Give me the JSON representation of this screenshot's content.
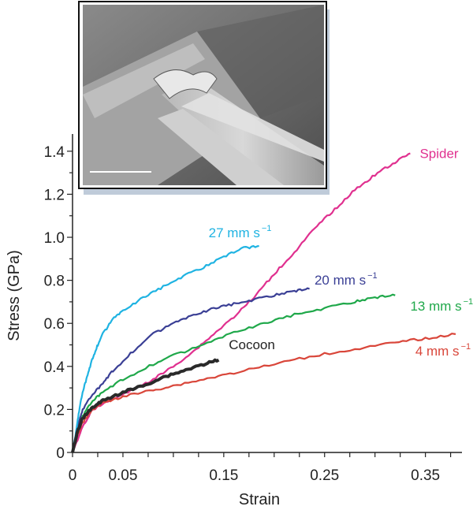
{
  "chart_data": {
    "type": "line",
    "title": "",
    "xlabel": "Strain",
    "ylabel": "Stress (GPa)",
    "xlim": [
      0,
      0.38
    ],
    "ylim": [
      0,
      1.48
    ],
    "x_ticks": [
      0,
      0.05,
      0.15,
      0.25,
      0.35
    ],
    "x_tick_labels": [
      "0",
      "0.05",
      "0.15",
      "0.25",
      "0.35"
    ],
    "y_ticks": [
      0,
      0.2,
      0.4,
      0.6,
      0.8,
      1.0,
      1.2,
      1.4
    ],
    "y_tick_labels": [
      "0",
      "0.2",
      "0.4",
      "0.6",
      "0.8",
      "1.0",
      "1.2",
      "1.4"
    ],
    "grid": false,
    "inset": {
      "description_visible": false,
      "has_scale_bar": true
    },
    "series": [
      {
        "name": "27 mm s",
        "label_sup": "−1",
        "color": "#1fb3e2",
        "points": [
          [
            0,
            0
          ],
          [
            0.003,
            0.08
          ],
          [
            0.006,
            0.18
          ],
          [
            0.01,
            0.28
          ],
          [
            0.015,
            0.36
          ],
          [
            0.02,
            0.44
          ],
          [
            0.025,
            0.5
          ],
          [
            0.03,
            0.55
          ],
          [
            0.04,
            0.62
          ],
          [
            0.05,
            0.66
          ],
          [
            0.07,
            0.72
          ],
          [
            0.09,
            0.77
          ],
          [
            0.11,
            0.82
          ],
          [
            0.13,
            0.86
          ],
          [
            0.15,
            0.91
          ],
          [
            0.17,
            0.95
          ],
          [
            0.185,
            0.96
          ]
        ]
      },
      {
        "name": "20 mm s",
        "label_sup": "−1",
        "color": "#3a3f95",
        "points": [
          [
            0,
            0
          ],
          [
            0.005,
            0.12
          ],
          [
            0.01,
            0.2
          ],
          [
            0.02,
            0.27
          ],
          [
            0.03,
            0.32
          ],
          [
            0.04,
            0.38
          ],
          [
            0.06,
            0.47
          ],
          [
            0.08,
            0.55
          ],
          [
            0.1,
            0.6
          ],
          [
            0.12,
            0.64
          ],
          [
            0.14,
            0.67
          ],
          [
            0.16,
            0.69
          ],
          [
            0.18,
            0.71
          ],
          [
            0.2,
            0.73
          ],
          [
            0.22,
            0.75
          ],
          [
            0.235,
            0.76
          ]
        ]
      },
      {
        "name": "13 mm s",
        "label_sup": "−1",
        "color": "#1fa84a",
        "points": [
          [
            0,
            0
          ],
          [
            0.005,
            0.1
          ],
          [
            0.01,
            0.17
          ],
          [
            0.02,
            0.24
          ],
          [
            0.03,
            0.28
          ],
          [
            0.05,
            0.34
          ],
          [
            0.08,
            0.41
          ],
          [
            0.1,
            0.45
          ],
          [
            0.13,
            0.5
          ],
          [
            0.16,
            0.56
          ],
          [
            0.19,
            0.6
          ],
          [
            0.22,
            0.64
          ],
          [
            0.25,
            0.67
          ],
          [
            0.28,
            0.7
          ],
          [
            0.3,
            0.72
          ],
          [
            0.32,
            0.73
          ]
        ]
      },
      {
        "name": "4 mm s",
        "label_sup": "−1",
        "color": "#d9463a",
        "points": [
          [
            0,
            0
          ],
          [
            0.005,
            0.08
          ],
          [
            0.01,
            0.14
          ],
          [
            0.02,
            0.2
          ],
          [
            0.03,
            0.23
          ],
          [
            0.05,
            0.26
          ],
          [
            0.08,
            0.29
          ],
          [
            0.1,
            0.31
          ],
          [
            0.13,
            0.34
          ],
          [
            0.16,
            0.37
          ],
          [
            0.2,
            0.41
          ],
          [
            0.24,
            0.45
          ],
          [
            0.28,
            0.48
          ],
          [
            0.32,
            0.51
          ],
          [
            0.35,
            0.53
          ],
          [
            0.38,
            0.55
          ]
        ]
      },
      {
        "name": "Cocoon",
        "label_sup": "",
        "color": "#2a2a2a",
        "points": [
          [
            0,
            0
          ],
          [
            0.005,
            0.1
          ],
          [
            0.01,
            0.16
          ],
          [
            0.02,
            0.21
          ],
          [
            0.03,
            0.24
          ],
          [
            0.05,
            0.28
          ],
          [
            0.07,
            0.31
          ],
          [
            0.09,
            0.35
          ],
          [
            0.11,
            0.38
          ],
          [
            0.13,
            0.41
          ],
          [
            0.145,
            0.43
          ]
        ]
      },
      {
        "name": "Spider",
        "label_sup": "",
        "color": "#e0308f",
        "points": [
          [
            0,
            0
          ],
          [
            0.01,
            0.12
          ],
          [
            0.02,
            0.2
          ],
          [
            0.04,
            0.25
          ],
          [
            0.06,
            0.29
          ],
          [
            0.08,
            0.34
          ],
          [
            0.1,
            0.4
          ],
          [
            0.12,
            0.47
          ],
          [
            0.14,
            0.55
          ],
          [
            0.16,
            0.63
          ],
          [
            0.18,
            0.72
          ],
          [
            0.2,
            0.83
          ],
          [
            0.22,
            0.93
          ],
          [
            0.24,
            1.04
          ],
          [
            0.26,
            1.13
          ],
          [
            0.28,
            1.22
          ],
          [
            0.3,
            1.29
          ],
          [
            0.32,
            1.35
          ],
          [
            0.335,
            1.39
          ]
        ]
      }
    ]
  }
}
